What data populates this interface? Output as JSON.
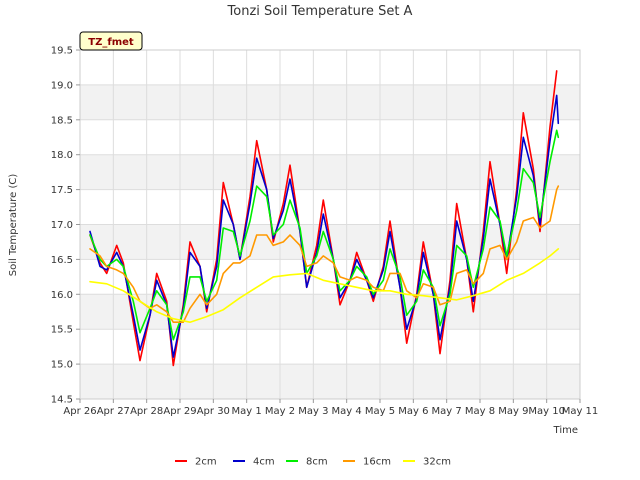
{
  "chart_data": {
    "type": "line",
    "title": "Tonzi Soil Temperature Set A",
    "xlabel": "Time",
    "ylabel": "Soil Temperature (C)",
    "site_tag": "TZ_fmet",
    "xlim": [
      0,
      15
    ],
    "ylim": [
      14.5,
      19.5
    ],
    "x_tick_labels": [
      "Apr 26",
      "Apr 27",
      "Apr 28",
      "Apr 29",
      "Apr 30",
      "May 1",
      "May 2",
      "May 3",
      "May 4",
      "May 5",
      "May 6",
      "May 7",
      "May 8",
      "May 9",
      "May 10",
      "May 11"
    ],
    "y_ticks": [
      14.5,
      15.0,
      15.5,
      16.0,
      16.5,
      17.0,
      17.5,
      18.0,
      18.5,
      19.0,
      19.5
    ],
    "y_tick_labels": [
      "14.5",
      "15.0",
      "15.5",
      "16.0",
      "16.5",
      "17.0",
      "17.5",
      "18.0",
      "18.5",
      "19.0",
      "19.5"
    ],
    "grid": true,
    "legend_position": "bottom",
    "x_unit": "days since Apr 26",
    "series": [
      {
        "name": "2cm",
        "color": "#ff0000",
        "x": [
          0.3,
          0.6,
          0.8,
          1.1,
          1.3,
          1.6,
          1.8,
          2.1,
          2.3,
          2.6,
          2.8,
          3.1,
          3.3,
          3.6,
          3.8,
          4.1,
          4.3,
          4.6,
          4.8,
          5.1,
          5.3,
          5.6,
          5.8,
          6.1,
          6.3,
          6.6,
          6.8,
          7.1,
          7.3,
          7.6,
          7.8,
          8.1,
          8.3,
          8.6,
          8.8,
          9.1,
          9.3,
          9.6,
          9.8,
          10.1,
          10.3,
          10.6,
          10.8,
          11.1,
          11.3,
          11.6,
          11.8,
          12.1,
          12.3,
          12.6,
          12.8,
          13.1,
          13.3,
          13.6,
          13.8,
          14.1,
          14.3
        ],
        "y": [
          16.85,
          16.45,
          16.3,
          16.7,
          16.45,
          15.6,
          15.05,
          15.7,
          16.3,
          15.9,
          14.98,
          15.85,
          16.75,
          16.4,
          15.75,
          16.5,
          17.6,
          17.0,
          16.5,
          17.4,
          18.2,
          17.5,
          16.75,
          17.3,
          17.85,
          16.9,
          16.1,
          16.7,
          17.35,
          16.5,
          15.85,
          16.2,
          16.6,
          16.2,
          15.9,
          16.4,
          17.05,
          16.1,
          15.3,
          16.0,
          16.75,
          16.0,
          15.15,
          16.2,
          17.3,
          16.5,
          15.75,
          16.9,
          17.9,
          17.0,
          16.3,
          17.5,
          18.6,
          17.8,
          16.9,
          18.4,
          19.2
        ]
      },
      {
        "name": "4cm",
        "color": "#0000cc",
        "x": [
          0.3,
          0.6,
          0.8,
          1.1,
          1.3,
          1.6,
          1.8,
          2.1,
          2.3,
          2.6,
          2.8,
          3.1,
          3.3,
          3.6,
          3.8,
          4.1,
          4.3,
          4.6,
          4.8,
          5.1,
          5.3,
          5.6,
          5.8,
          6.1,
          6.3,
          6.6,
          6.8,
          7.1,
          7.3,
          7.6,
          7.8,
          8.1,
          8.3,
          8.6,
          8.8,
          9.1,
          9.3,
          9.6,
          9.8,
          10.1,
          10.3,
          10.6,
          10.8,
          11.1,
          11.3,
          11.6,
          11.8,
          12.1,
          12.3,
          12.6,
          12.8,
          13.1,
          13.3,
          13.6,
          13.8,
          14.1,
          14.3,
          14.35
        ],
        "y": [
          16.9,
          16.4,
          16.35,
          16.6,
          16.4,
          15.7,
          15.2,
          15.7,
          16.2,
          15.85,
          15.1,
          15.8,
          16.6,
          16.4,
          15.8,
          16.4,
          17.35,
          17.0,
          16.5,
          17.3,
          17.95,
          17.5,
          16.8,
          17.2,
          17.65,
          16.9,
          16.1,
          16.6,
          17.15,
          16.5,
          15.95,
          16.2,
          16.5,
          16.2,
          15.95,
          16.35,
          16.9,
          16.1,
          15.5,
          15.95,
          16.6,
          16.0,
          15.35,
          16.1,
          17.05,
          16.5,
          15.9,
          16.8,
          17.65,
          17.0,
          16.5,
          17.4,
          18.25,
          17.7,
          17.0,
          18.2,
          18.85,
          18.45
        ]
      },
      {
        "name": "8cm",
        "color": "#00ee00",
        "x": [
          0.3,
          0.6,
          0.8,
          1.1,
          1.3,
          1.6,
          1.8,
          2.1,
          2.3,
          2.6,
          2.8,
          3.1,
          3.3,
          3.6,
          3.8,
          4.1,
          4.3,
          4.6,
          4.8,
          5.1,
          5.3,
          5.6,
          5.8,
          6.1,
          6.3,
          6.6,
          6.8,
          7.1,
          7.3,
          7.6,
          7.8,
          8.1,
          8.3,
          8.6,
          8.8,
          9.1,
          9.3,
          9.6,
          9.8,
          10.1,
          10.3,
          10.6,
          10.8,
          11.1,
          11.3,
          11.6,
          11.8,
          12.1,
          12.3,
          12.6,
          12.8,
          13.1,
          13.3,
          13.6,
          13.8,
          14.1,
          14.3,
          14.35
        ],
        "y": [
          16.85,
          16.5,
          16.4,
          16.5,
          16.4,
          15.9,
          15.45,
          15.8,
          16.05,
          15.85,
          15.35,
          15.75,
          16.25,
          16.25,
          15.9,
          16.2,
          16.95,
          16.9,
          16.55,
          17.05,
          17.55,
          17.4,
          16.85,
          17.0,
          17.35,
          16.95,
          16.3,
          16.55,
          16.9,
          16.5,
          16.05,
          16.2,
          16.4,
          16.25,
          16.0,
          16.2,
          16.65,
          16.25,
          15.7,
          15.9,
          16.35,
          16.1,
          15.55,
          16.0,
          16.7,
          16.55,
          16.1,
          16.65,
          17.25,
          17.05,
          16.55,
          17.2,
          17.8,
          17.6,
          17.1,
          17.9,
          18.35,
          18.25
        ]
      },
      {
        "name": "16cm",
        "color": "#ff9900",
        "x": [
          0.3,
          0.6,
          0.8,
          1.1,
          1.3,
          1.6,
          1.8,
          2.1,
          2.3,
          2.6,
          2.8,
          3.1,
          3.3,
          3.6,
          3.8,
          4.1,
          4.3,
          4.6,
          4.8,
          5.1,
          5.3,
          5.6,
          5.8,
          6.1,
          6.3,
          6.6,
          6.8,
          7.1,
          7.3,
          7.6,
          7.8,
          8.1,
          8.3,
          8.6,
          8.8,
          9.1,
          9.3,
          9.6,
          9.8,
          10.1,
          10.3,
          10.6,
          10.8,
          11.1,
          11.3,
          11.6,
          11.8,
          12.1,
          12.3,
          12.6,
          12.8,
          13.1,
          13.3,
          13.6,
          13.8,
          14.1,
          14.3,
          14.35
        ],
        "y": [
          16.65,
          16.55,
          16.4,
          16.35,
          16.3,
          16.1,
          15.9,
          15.8,
          15.85,
          15.75,
          15.6,
          15.6,
          15.8,
          16.0,
          15.85,
          16.0,
          16.3,
          16.45,
          16.45,
          16.55,
          16.85,
          16.85,
          16.7,
          16.75,
          16.85,
          16.7,
          16.4,
          16.45,
          16.55,
          16.45,
          16.25,
          16.2,
          16.25,
          16.2,
          16.1,
          16.05,
          16.3,
          16.3,
          16.05,
          15.95,
          16.15,
          16.1,
          15.85,
          15.9,
          16.3,
          16.35,
          16.15,
          16.3,
          16.65,
          16.7,
          16.5,
          16.75,
          17.05,
          17.1,
          16.95,
          17.05,
          17.5,
          17.55
        ]
      },
      {
        "name": "32cm",
        "color": "#ffff00",
        "x": [
          0.3,
          0.8,
          1.3,
          1.8,
          2.3,
          2.8,
          3.3,
          3.8,
          4.3,
          4.8,
          5.3,
          5.8,
          6.3,
          6.8,
          7.3,
          7.8,
          8.3,
          8.8,
          9.3,
          9.8,
          10.3,
          10.8,
          11.3,
          11.8,
          12.3,
          12.8,
          13.3,
          13.8,
          14.1,
          14.35
        ],
        "y": [
          16.18,
          16.15,
          16.05,
          15.9,
          15.75,
          15.65,
          15.6,
          15.68,
          15.78,
          15.95,
          16.1,
          16.25,
          16.28,
          16.3,
          16.2,
          16.15,
          16.1,
          16.05,
          16.05,
          16.0,
          15.98,
          15.95,
          15.92,
          15.98,
          16.05,
          16.2,
          16.3,
          16.45,
          16.55,
          16.65
        ]
      }
    ]
  }
}
